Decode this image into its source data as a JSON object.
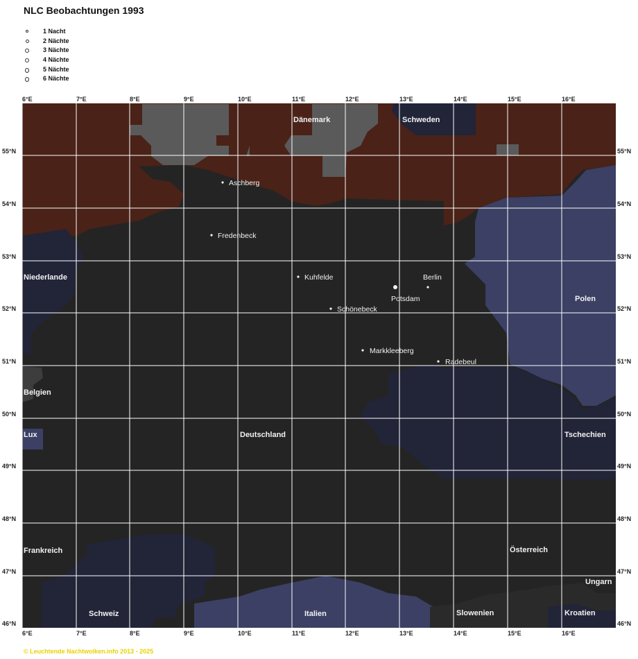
{
  "title": "NLC Beobachtungen 1993",
  "legend": [
    {
      "label": "1 Nacht",
      "nights": 1
    },
    {
      "label": "2 Nächte",
      "nights": 2
    },
    {
      "label": "3 Nächte",
      "nights": 3
    },
    {
      "label": "4 Nächte",
      "nights": 4
    },
    {
      "label": "5 Nächte",
      "nights": 5
    },
    {
      "label": "6 Nächte",
      "nights": 6
    }
  ],
  "colors": {
    "germany": "#242424",
    "sea": "#4a2218",
    "scandinavia": "#5a5a5a",
    "blue_country": "#3b4064",
    "dark_blue_country": "#222438",
    "south_gray": "#3d3d3d",
    "gridline": "#ffffff"
  },
  "map": {
    "lon_ticks": [
      "6°E",
      "7°E",
      "8°E",
      "9°E",
      "10°E",
      "11°E",
      "12°E",
      "13°E",
      "14°E",
      "15°E",
      "16°E"
    ],
    "lat_ticks": [
      "55°N",
      "54°N",
      "53°N",
      "52°N",
      "51°N",
      "50°N",
      "49°N",
      "48°N",
      "47°N",
      "46°N"
    ],
    "countries": [
      {
        "name": "Dänemark"
      },
      {
        "name": "Schweden"
      },
      {
        "name": "Niederlande"
      },
      {
        "name": "Polen"
      },
      {
        "name": "Belgien"
      },
      {
        "name": "Lux"
      },
      {
        "name": "Deutschland"
      },
      {
        "name": "Tschechien"
      },
      {
        "name": "Frankreich"
      },
      {
        "name": "Österreich"
      },
      {
        "name": "Ungarn"
      },
      {
        "name": "Schweiz"
      },
      {
        "name": "Italien"
      },
      {
        "name": "Slowenien"
      },
      {
        "name": "Kroatien"
      }
    ],
    "places": [
      {
        "name": "Aschberg"
      },
      {
        "name": "Fredenbeck"
      },
      {
        "name": "Kuhfelde"
      },
      {
        "name": "Berlin"
      },
      {
        "name": "Potsdam"
      },
      {
        "name": "Schönebeck"
      },
      {
        "name": "Markkleeberg"
      },
      {
        "name": "Radebeul"
      }
    ]
  },
  "copyright": "© Leuchtende Nachtwolken.info 2013 - 2025"
}
